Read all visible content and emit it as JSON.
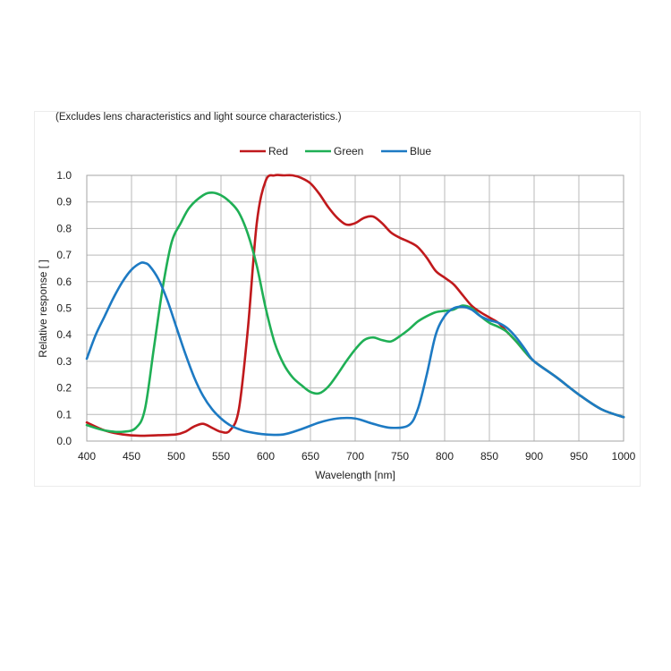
{
  "chart_data": {
    "type": "line",
    "subtitle": "(Excludes lens characteristics and light source characteristics.)",
    "xlabel": "Wavelength [nm]",
    "ylabel": "Relative response [ ]",
    "xlim": [
      400,
      1000
    ],
    "ylim": [
      0,
      1.0
    ],
    "xticks": [
      "400",
      "450",
      "500",
      "550",
      "600",
      "650",
      "700",
      "750",
      "800",
      "850",
      "900",
      "950",
      "1000"
    ],
    "yticks": [
      "0.0",
      "0.1",
      "0.2",
      "0.3",
      "0.4",
      "0.5",
      "0.6",
      "0.7",
      "0.8",
      "0.9",
      "1.0"
    ],
    "grid": true,
    "legend_position": "top-center",
    "series": [
      {
        "name": "Red",
        "color": "#c0191c",
        "x": [
          400,
          420,
          440,
          460,
          480,
          500,
          510,
          520,
          530,
          540,
          550,
          560,
          570,
          580,
          590,
          600,
          610,
          620,
          630,
          640,
          650,
          660,
          670,
          680,
          690,
          700,
          710,
          720,
          730,
          740,
          750,
          760,
          770,
          780,
          790,
          800,
          810,
          820,
          830,
          840,
          850,
          860,
          870,
          880,
          890,
          900,
          925,
          950,
          975,
          1000
        ],
        "y": [
          0.07,
          0.04,
          0.025,
          0.02,
          0.022,
          0.025,
          0.035,
          0.055,
          0.065,
          0.05,
          0.035,
          0.04,
          0.12,
          0.42,
          0.82,
          0.98,
          1.0,
          1.0,
          1.0,
          0.99,
          0.97,
          0.93,
          0.88,
          0.84,
          0.815,
          0.82,
          0.84,
          0.845,
          0.82,
          0.785,
          0.765,
          0.75,
          0.73,
          0.69,
          0.64,
          0.615,
          0.59,
          0.55,
          0.51,
          0.485,
          0.465,
          0.445,
          0.41,
          0.375,
          0.335,
          0.3,
          0.24,
          0.175,
          0.12,
          0.09
        ]
      },
      {
        "name": "Green",
        "color": "#1faf55",
        "x": [
          400,
          420,
          440,
          455,
          465,
          475,
          485,
          495,
          505,
          515,
          530,
          540,
          550,
          560,
          570,
          580,
          590,
          600,
          610,
          620,
          630,
          640,
          650,
          660,
          670,
          680,
          690,
          700,
          710,
          720,
          730,
          740,
          750,
          760,
          770,
          780,
          790,
          800,
          810,
          820,
          830,
          840,
          850,
          860,
          870,
          880,
          890,
          900,
          925,
          950,
          975,
          1000
        ],
        "y": [
          0.06,
          0.04,
          0.035,
          0.05,
          0.12,
          0.35,
          0.58,
          0.75,
          0.82,
          0.88,
          0.925,
          0.935,
          0.925,
          0.9,
          0.86,
          0.78,
          0.66,
          0.5,
          0.37,
          0.29,
          0.24,
          0.21,
          0.185,
          0.18,
          0.205,
          0.25,
          0.3,
          0.345,
          0.38,
          0.39,
          0.38,
          0.375,
          0.395,
          0.42,
          0.45,
          0.47,
          0.485,
          0.49,
          0.495,
          0.51,
          0.5,
          0.47,
          0.445,
          0.43,
          0.41,
          0.375,
          0.335,
          0.3,
          0.24,
          0.175,
          0.12,
          0.09
        ]
      },
      {
        "name": "Blue",
        "color": "#1d7ac3",
        "x": [
          400,
          410,
          420,
          430,
          440,
          450,
          460,
          465,
          470,
          480,
          490,
          500,
          510,
          520,
          530,
          540,
          550,
          560,
          570,
          580,
          600,
          620,
          640,
          660,
          680,
          700,
          720,
          740,
          760,
          770,
          780,
          790,
          800,
          810,
          820,
          830,
          840,
          850,
          860,
          870,
          880,
          890,
          900,
          925,
          950,
          975,
          1000
        ],
        "y": [
          0.31,
          0.4,
          0.47,
          0.54,
          0.6,
          0.645,
          0.67,
          0.67,
          0.66,
          0.61,
          0.53,
          0.43,
          0.33,
          0.24,
          0.17,
          0.12,
          0.085,
          0.06,
          0.045,
          0.035,
          0.025,
          0.025,
          0.045,
          0.07,
          0.085,
          0.085,
          0.065,
          0.05,
          0.06,
          0.12,
          0.25,
          0.4,
          0.47,
          0.5,
          0.505,
          0.495,
          0.47,
          0.455,
          0.445,
          0.425,
          0.39,
          0.345,
          0.3,
          0.24,
          0.175,
          0.12,
          0.09
        ]
      }
    ]
  }
}
